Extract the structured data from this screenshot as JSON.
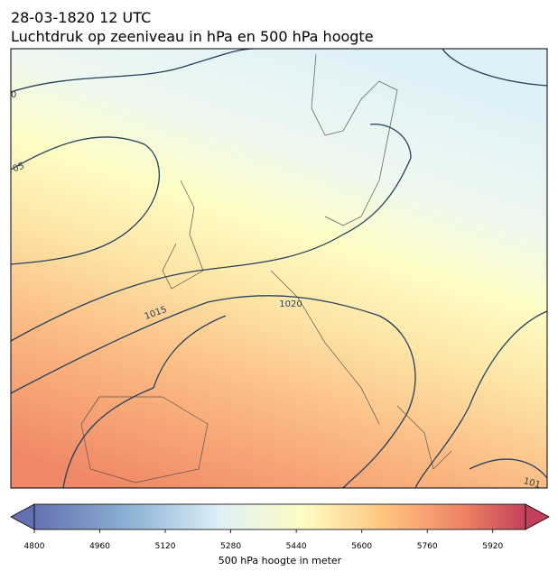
{
  "header": {
    "title": "28-03-1820 12 UTC",
    "subtitle": "Luchtdruk op zeeniveau in hPa en 500 hPa hoogte"
  },
  "map": {
    "contour_labels": [
      "1020",
      "1015",
      "05",
      "0",
      "101"
    ]
  },
  "colorbar": {
    "label": "500 hPa hoogte in meter",
    "lim": [
      4800,
      6000
    ],
    "ticks": [
      4800,
      4960,
      5120,
      5280,
      5440,
      5600,
      5760,
      5920
    ]
  }
}
